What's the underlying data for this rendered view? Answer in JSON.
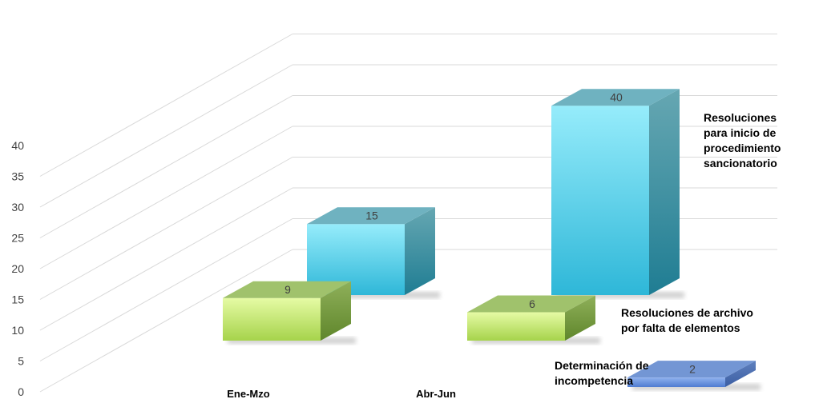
{
  "chart_data": {
    "type": "bar",
    "style": "3d-clustered-depth",
    "categories": [
      "Ene-Mzo",
      "Abr-Jun"
    ],
    "series": [
      {
        "name": "Determinación de incompetencia",
        "label_lines": [
          "Determinación de",
          "incompetencia"
        ],
        "values": [
          null,
          2
        ],
        "color": "#6f93d6"
      },
      {
        "name": "Resoluciones de archivo por falta de elementos",
        "label_lines": [
          "Resoluciones de archivo",
          "por falta de elementos"
        ],
        "values": [
          9,
          6
        ],
        "color": "#b6e07a"
      },
      {
        "name": "Resoluciones para inicio de procedimiento sancionatorio",
        "label_lines": [
          "Resoluciones",
          "para inicio de",
          "procedimiento",
          "sancionatorio"
        ],
        "values": [
          15,
          40
        ],
        "color": "#5fd0ea"
      }
    ],
    "ylim": [
      0,
      40
    ],
    "yticks": [
      0,
      5,
      10,
      15,
      20,
      25,
      30,
      35,
      40
    ],
    "grid": true,
    "data_labels": true
  }
}
